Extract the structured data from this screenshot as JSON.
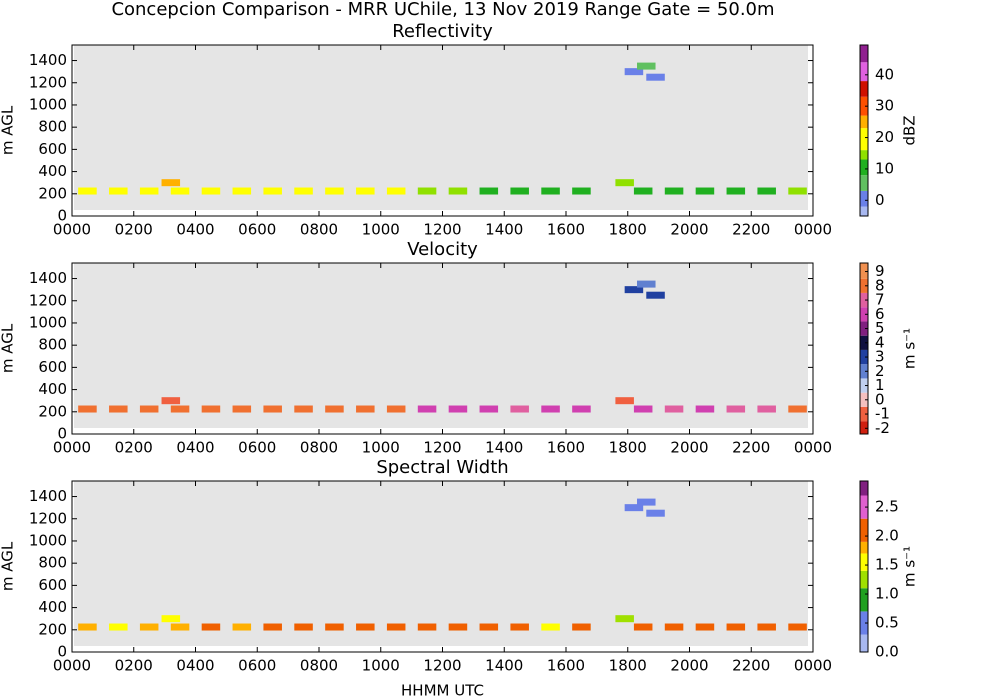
{
  "title": "Concepcion Comparison - MRR UChile, 13 Nov 2019 Range Gate = 50.0m",
  "chart_data": [
    {
      "type": "heatmap",
      "title": "Reflectivity",
      "ylabel": "m AGL",
      "clabel": "dBZ",
      "xlim": [
        0,
        24
      ],
      "ylim": [
        0,
        1540
      ],
      "xticks": [
        {
          "value": 0,
          "label": "0000"
        },
        {
          "value": 2,
          "label": "0200"
        },
        {
          "value": 4,
          "label": "0400"
        },
        {
          "value": 6,
          "label": "0600"
        },
        {
          "value": 8,
          "label": "0800"
        },
        {
          "value": 10,
          "label": "1000"
        },
        {
          "value": 12,
          "label": "1200"
        },
        {
          "value": 14,
          "label": "1400"
        },
        {
          "value": 16,
          "label": "1600"
        },
        {
          "value": 18,
          "label": "1800"
        },
        {
          "value": 20,
          "label": "2000"
        },
        {
          "value": 22,
          "label": "2200"
        },
        {
          "value": 24,
          "label": "0000"
        }
      ],
      "yticks": [
        0,
        200,
        400,
        600,
        800,
        1000,
        1200,
        1400
      ],
      "clim": [
        -5,
        49.5
      ],
      "cticks": [
        0,
        10,
        20,
        30,
        40
      ],
      "colorscale": [
        [
          -10,
          "#a8b8f0"
        ],
        [
          -2,
          "#6a80e8"
        ],
        [
          3,
          "#60c060"
        ],
        [
          8,
          "#20b020"
        ],
        [
          13,
          "#90e000"
        ],
        [
          16,
          "#ffff00"
        ],
        [
          23,
          "#ffb000"
        ],
        [
          27,
          "#ff5000"
        ],
        [
          33,
          "#d01000"
        ],
        [
          38,
          "#e060e0"
        ],
        [
          44,
          "#902090"
        ]
      ],
      "x": [
        0.5,
        1.5,
        2.5,
        3.2,
        3.5,
        4.5,
        5.5,
        6.5,
        7.5,
        8.5,
        9.5,
        10.5,
        11.5,
        12.5,
        13.5,
        14.5,
        15.5,
        16.5,
        17.9,
        18.5,
        19.5,
        20.5,
        21.5,
        22.5,
        23.5,
        18.2,
        18.6,
        18.9
      ],
      "y": [
        225,
        225,
        225,
        300,
        225,
        225,
        225,
        225,
        225,
        225,
        225,
        225,
        225,
        225,
        225,
        225,
        225,
        225,
        300,
        225,
        225,
        225,
        225,
        225,
        225,
        1300,
        1350,
        1250
      ],
      "values": [
        20,
        19,
        20,
        24,
        21,
        20,
        20,
        19,
        18,
        19,
        18,
        18,
        13,
        13,
        12,
        12,
        12,
        12,
        14,
        12,
        12,
        12,
        11,
        12,
        13,
        2,
        3,
        2
      ]
    },
    {
      "type": "heatmap",
      "title": "Velocity",
      "ylabel": "m AGL",
      "clabel": "m s⁻¹",
      "xlim": [
        0,
        24
      ],
      "ylim": [
        0,
        1540
      ],
      "xticks": [
        {
          "value": 0,
          "label": "0000"
        },
        {
          "value": 2,
          "label": "0200"
        },
        {
          "value": 4,
          "label": "0400"
        },
        {
          "value": 6,
          "label": "0600"
        },
        {
          "value": 8,
          "label": "0800"
        },
        {
          "value": 10,
          "label": "1000"
        },
        {
          "value": 12,
          "label": "1200"
        },
        {
          "value": 14,
          "label": "1400"
        },
        {
          "value": 16,
          "label": "1600"
        },
        {
          "value": 18,
          "label": "1800"
        },
        {
          "value": 20,
          "label": "2000"
        },
        {
          "value": 22,
          "label": "2200"
        },
        {
          "value": 24,
          "label": "0000"
        }
      ],
      "yticks": [
        0,
        200,
        400,
        600,
        800,
        1000,
        1200,
        1400
      ],
      "clim": [
        -2.4,
        9.6
      ],
      "cticks": [
        -2,
        -1,
        0,
        1,
        2,
        3,
        4,
        5,
        6,
        7,
        8,
        9
      ],
      "colorscale": [
        [
          -3,
          "#d02010"
        ],
        [
          -1.5,
          "#f06040"
        ],
        [
          -0.5,
          "#f4c0c0"
        ],
        [
          0.5,
          "#c0d0f0"
        ],
        [
          1.5,
          "#6080d0"
        ],
        [
          2.5,
          "#2040a0"
        ],
        [
          3.5,
          "#101040"
        ],
        [
          4.5,
          "#802080"
        ],
        [
          5.5,
          "#d040b0"
        ],
        [
          6.5,
          "#e060a0"
        ],
        [
          7.5,
          "#f07030"
        ],
        [
          8.5,
          "#f09050"
        ]
      ],
      "x": [
        0.5,
        1.5,
        2.5,
        3.2,
        3.5,
        4.5,
        5.5,
        6.5,
        7.5,
        8.5,
        9.5,
        10.5,
        11.5,
        12.5,
        13.5,
        14.5,
        15.5,
        16.5,
        17.9,
        18.5,
        19.5,
        20.5,
        21.5,
        22.5,
        23.5,
        18.2,
        18.6,
        18.9
      ],
      "y": [
        225,
        225,
        225,
        300,
        225,
        225,
        225,
        225,
        225,
        225,
        225,
        225,
        225,
        225,
        225,
        225,
        225,
        225,
        300,
        225,
        225,
        225,
        225,
        225,
        225,
        1300,
        1350,
        1250
      ],
      "values": [
        7.5,
        8,
        7.5,
        -1,
        8,
        7.5,
        8,
        7.5,
        8,
        8,
        7.5,
        8,
        6,
        6,
        6,
        7,
        6,
        6,
        -1,
        6,
        6.5,
        6,
        6.5,
        7,
        7.5,
        3,
        2,
        3
      ]
    },
    {
      "type": "heatmap",
      "title": "Spectral Width",
      "ylabel": "m AGL",
      "clabel": "m s⁻¹",
      "xlabel": "HHMM UTC",
      "xlim": [
        0,
        24
      ],
      "ylim": [
        0,
        1540
      ],
      "xticks": [
        {
          "value": 0,
          "label": "0000"
        },
        {
          "value": 2,
          "label": "0200"
        },
        {
          "value": 4,
          "label": "0400"
        },
        {
          "value": 6,
          "label": "0600"
        },
        {
          "value": 8,
          "label": "0800"
        },
        {
          "value": 10,
          "label": "1000"
        },
        {
          "value": 12,
          "label": "1200"
        },
        {
          "value": 14,
          "label": "1400"
        },
        {
          "value": 16,
          "label": "1600"
        },
        {
          "value": 18,
          "label": "1800"
        },
        {
          "value": 20,
          "label": "2000"
        },
        {
          "value": 22,
          "label": "2200"
        },
        {
          "value": 24,
          "label": "0000"
        }
      ],
      "yticks": [
        0,
        200,
        400,
        600,
        800,
        1000,
        1200,
        1400
      ],
      "clim": [
        0,
        2.95
      ],
      "cticks": [
        {
          "value": 0,
          "label": "0.0"
        },
        0.5,
        {
          "value": 1,
          "label": "1.0"
        },
        1.5,
        {
          "value": 2,
          "label": "2.0"
        },
        2.5
      ],
      "colorscale": [
        [
          -1,
          "#a8b8f0"
        ],
        [
          0.3,
          "#6a80e8"
        ],
        [
          0.7,
          "#20a020"
        ],
        [
          1.1,
          "#a0e000"
        ],
        [
          1.4,
          "#ffff00"
        ],
        [
          1.7,
          "#ffb000"
        ],
        [
          1.9,
          "#f06000"
        ],
        [
          2.3,
          "#e060d0"
        ],
        [
          2.7,
          "#802080"
        ]
      ],
      "x": [
        0.5,
        1.5,
        2.5,
        3.2,
        3.5,
        4.5,
        5.5,
        6.5,
        7.5,
        8.5,
        9.5,
        10.5,
        11.5,
        12.5,
        13.5,
        14.5,
        15.5,
        16.5,
        17.9,
        18.5,
        19.5,
        20.5,
        21.5,
        22.5,
        23.5,
        18.2,
        18.6,
        18.9
      ],
      "y": [
        225,
        225,
        225,
        300,
        225,
        225,
        225,
        225,
        225,
        225,
        225,
        225,
        225,
        225,
        225,
        225,
        225,
        225,
        300,
        225,
        225,
        225,
        225,
        225,
        225,
        1300,
        1350,
        1250
      ],
      "values": [
        1.8,
        1.6,
        1.8,
        1.4,
        1.8,
        1.9,
        1.8,
        1.9,
        1.9,
        2,
        2,
        2,
        2,
        2,
        2,
        2,
        1.6,
        1.9,
        1.2,
        1.9,
        1.9,
        2,
        2,
        1.9,
        1.9,
        0.4,
        0.3,
        0.4
      ]
    }
  ]
}
